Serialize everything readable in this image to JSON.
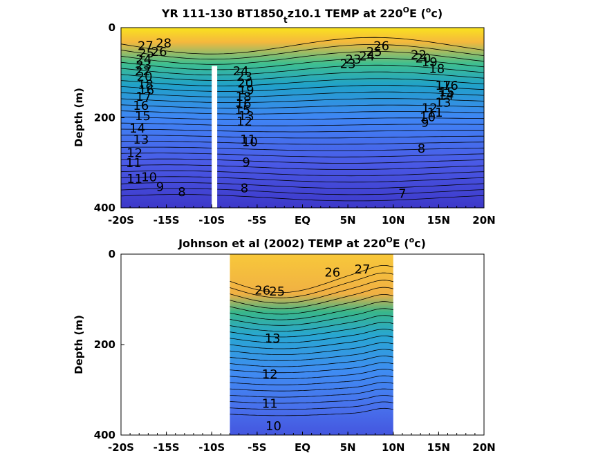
{
  "chart_data": [
    {
      "type": "contour",
      "title": "YR 111-130 BT1850",
      "title_subscript": "t",
      "title_rest": "z10.1 TEMP at 220",
      "title_degree": "O",
      "title_tail": "E (",
      "title_unit_sup": "o",
      "title_unit_tail": "c)",
      "ylabel": "Depth (m)",
      "xlim": [
        -20,
        20
      ],
      "ylim": [
        0,
        400
      ],
      "x_ticks": [
        -20,
        -15,
        -10,
        -5,
        0,
        5,
        10,
        15,
        20
      ],
      "x_tick_labels": [
        "-20S",
        "-15S",
        "-10S",
        "-5S",
        "EQ",
        "5N",
        "10N",
        "15N",
        "20N"
      ],
      "y_ticks": [
        0,
        200,
        400
      ],
      "y_tick_labels": [
        "0",
        "200",
        "400"
      ],
      "data_gap_x": [
        -10,
        -9.4
      ],
      "contour_labels": [
        {
          "text": "28",
          "x": -15.3,
          "y": 36
        },
        {
          "text": "27",
          "x": -17.3,
          "y": 42
        },
        {
          "text": "26",
          "x": -15.8,
          "y": 55
        },
        {
          "text": "25",
          "x": -17.2,
          "y": 58
        },
        {
          "text": "24",
          "x": -17.5,
          "y": 72
        },
        {
          "text": "23",
          "x": -17.5,
          "y": 85
        },
        {
          "text": "22",
          "x": -17.6,
          "y": 98
        },
        {
          "text": "20",
          "x": -17.4,
          "y": 110
        },
        {
          "text": "18",
          "x": -17.3,
          "y": 128
        },
        {
          "text": "16",
          "x": -17.2,
          "y": 140
        },
        {
          "text": "17",
          "x": -17.5,
          "y": 155
        },
        {
          "text": "16",
          "x": -17.8,
          "y": 175
        },
        {
          "text": "15",
          "x": -17.6,
          "y": 198
        },
        {
          "text": "14",
          "x": -18.2,
          "y": 225
        },
        {
          "text": "13",
          "x": -17.8,
          "y": 250
        },
        {
          "text": "12",
          "x": -18.5,
          "y": 280
        },
        {
          "text": "11",
          "x": -18.6,
          "y": 302
        },
        {
          "text": "10",
          "x": -16.9,
          "y": 333
        },
        {
          "text": "11",
          "x": -18.5,
          "y": 337
        },
        {
          "text": "9",
          "x": -15.7,
          "y": 355
        },
        {
          "text": "8",
          "x": -13.3,
          "y": 366
        },
        {
          "text": "24",
          "x": -6.8,
          "y": 98
        },
        {
          "text": "23",
          "x": -6.4,
          "y": 110
        },
        {
          "text": "20",
          "x": -6.3,
          "y": 125
        },
        {
          "text": "19",
          "x": -6.2,
          "y": 140
        },
        {
          "text": "18",
          "x": -6.5,
          "y": 155
        },
        {
          "text": "16",
          "x": -6.5,
          "y": 170
        },
        {
          "text": "15",
          "x": -6.6,
          "y": 185
        },
        {
          "text": "13",
          "x": -6.2,
          "y": 198
        },
        {
          "text": "12",
          "x": -6.4,
          "y": 210
        },
        {
          "text": "11",
          "x": -6.0,
          "y": 250
        },
        {
          "text": "10",
          "x": -5.8,
          "y": 255
        },
        {
          "text": "9",
          "x": -6.2,
          "y": 300
        },
        {
          "text": "8",
          "x": -6.4,
          "y": 358
        },
        {
          "text": "26",
          "x": 8.7,
          "y": 42
        },
        {
          "text": "25",
          "x": 7.9,
          "y": 55
        },
        {
          "text": "24",
          "x": 7.1,
          "y": 65
        },
        {
          "text": "23",
          "x": 5.6,
          "y": 72
        },
        {
          "text": "23",
          "x": 5.0,
          "y": 82
        },
        {
          "text": "22",
          "x": 12.8,
          "y": 62
        },
        {
          "text": "20",
          "x": 13.3,
          "y": 70
        },
        {
          "text": "19",
          "x": 14.0,
          "y": 78
        },
        {
          "text": "18",
          "x": 14.8,
          "y": 93
        },
        {
          "text": "17",
          "x": 15.5,
          "y": 130
        },
        {
          "text": "16",
          "x": 16.3,
          "y": 130
        },
        {
          "text": "15",
          "x": 15.9,
          "y": 145
        },
        {
          "text": "14",
          "x": 15.8,
          "y": 152
        },
        {
          "text": "13",
          "x": 15.5,
          "y": 168
        },
        {
          "text": "12",
          "x": 14.0,
          "y": 180
        },
        {
          "text": "11",
          "x": 14.6,
          "y": 190
        },
        {
          "text": "10",
          "x": 13.8,
          "y": 200
        },
        {
          "text": "9",
          "x": 13.5,
          "y": 212
        },
        {
          "text": "8",
          "x": 13.1,
          "y": 270
        },
        {
          "text": "7",
          "x": 11.0,
          "y": 370
        }
      ]
    },
    {
      "type": "contour",
      "title": "Johnson et al (2002) TEMP at 220",
      "title_degree": "O",
      "title_tail": "E (",
      "title_unit_sup": "o",
      "title_unit_tail": "c)",
      "ylabel": "Depth (m)",
      "xlim": [
        -20,
        20
      ],
      "ylim": [
        0,
        400
      ],
      "data_xlim": [
        -8,
        10
      ],
      "x_ticks": [
        -20,
        -15,
        -10,
        -5,
        0,
        5,
        10,
        15,
        20
      ],
      "x_tick_labels": [
        "-20S",
        "-15S",
        "-10S",
        "-5S",
        "EQ",
        "5N",
        "10N",
        "15N",
        "20N"
      ],
      "y_ticks": [
        0,
        200,
        400
      ],
      "y_tick_labels": [
        "0",
        "200",
        "400"
      ],
      "contour_labels": [
        {
          "text": "27",
          "x": 6.6,
          "y": 35
        },
        {
          "text": "26",
          "x": 3.3,
          "y": 42
        },
        {
          "text": "26",
          "x": -4.4,
          "y": 82
        },
        {
          "text": "25",
          "x": -2.8,
          "y": 84
        },
        {
          "text": "13",
          "x": -3.3,
          "y": 188
        },
        {
          "text": "12",
          "x": -3.6,
          "y": 267
        },
        {
          "text": "11",
          "x": -3.6,
          "y": 332
        },
        {
          "text": "10",
          "x": -3.2,
          "y": 382
        }
      ]
    }
  ]
}
